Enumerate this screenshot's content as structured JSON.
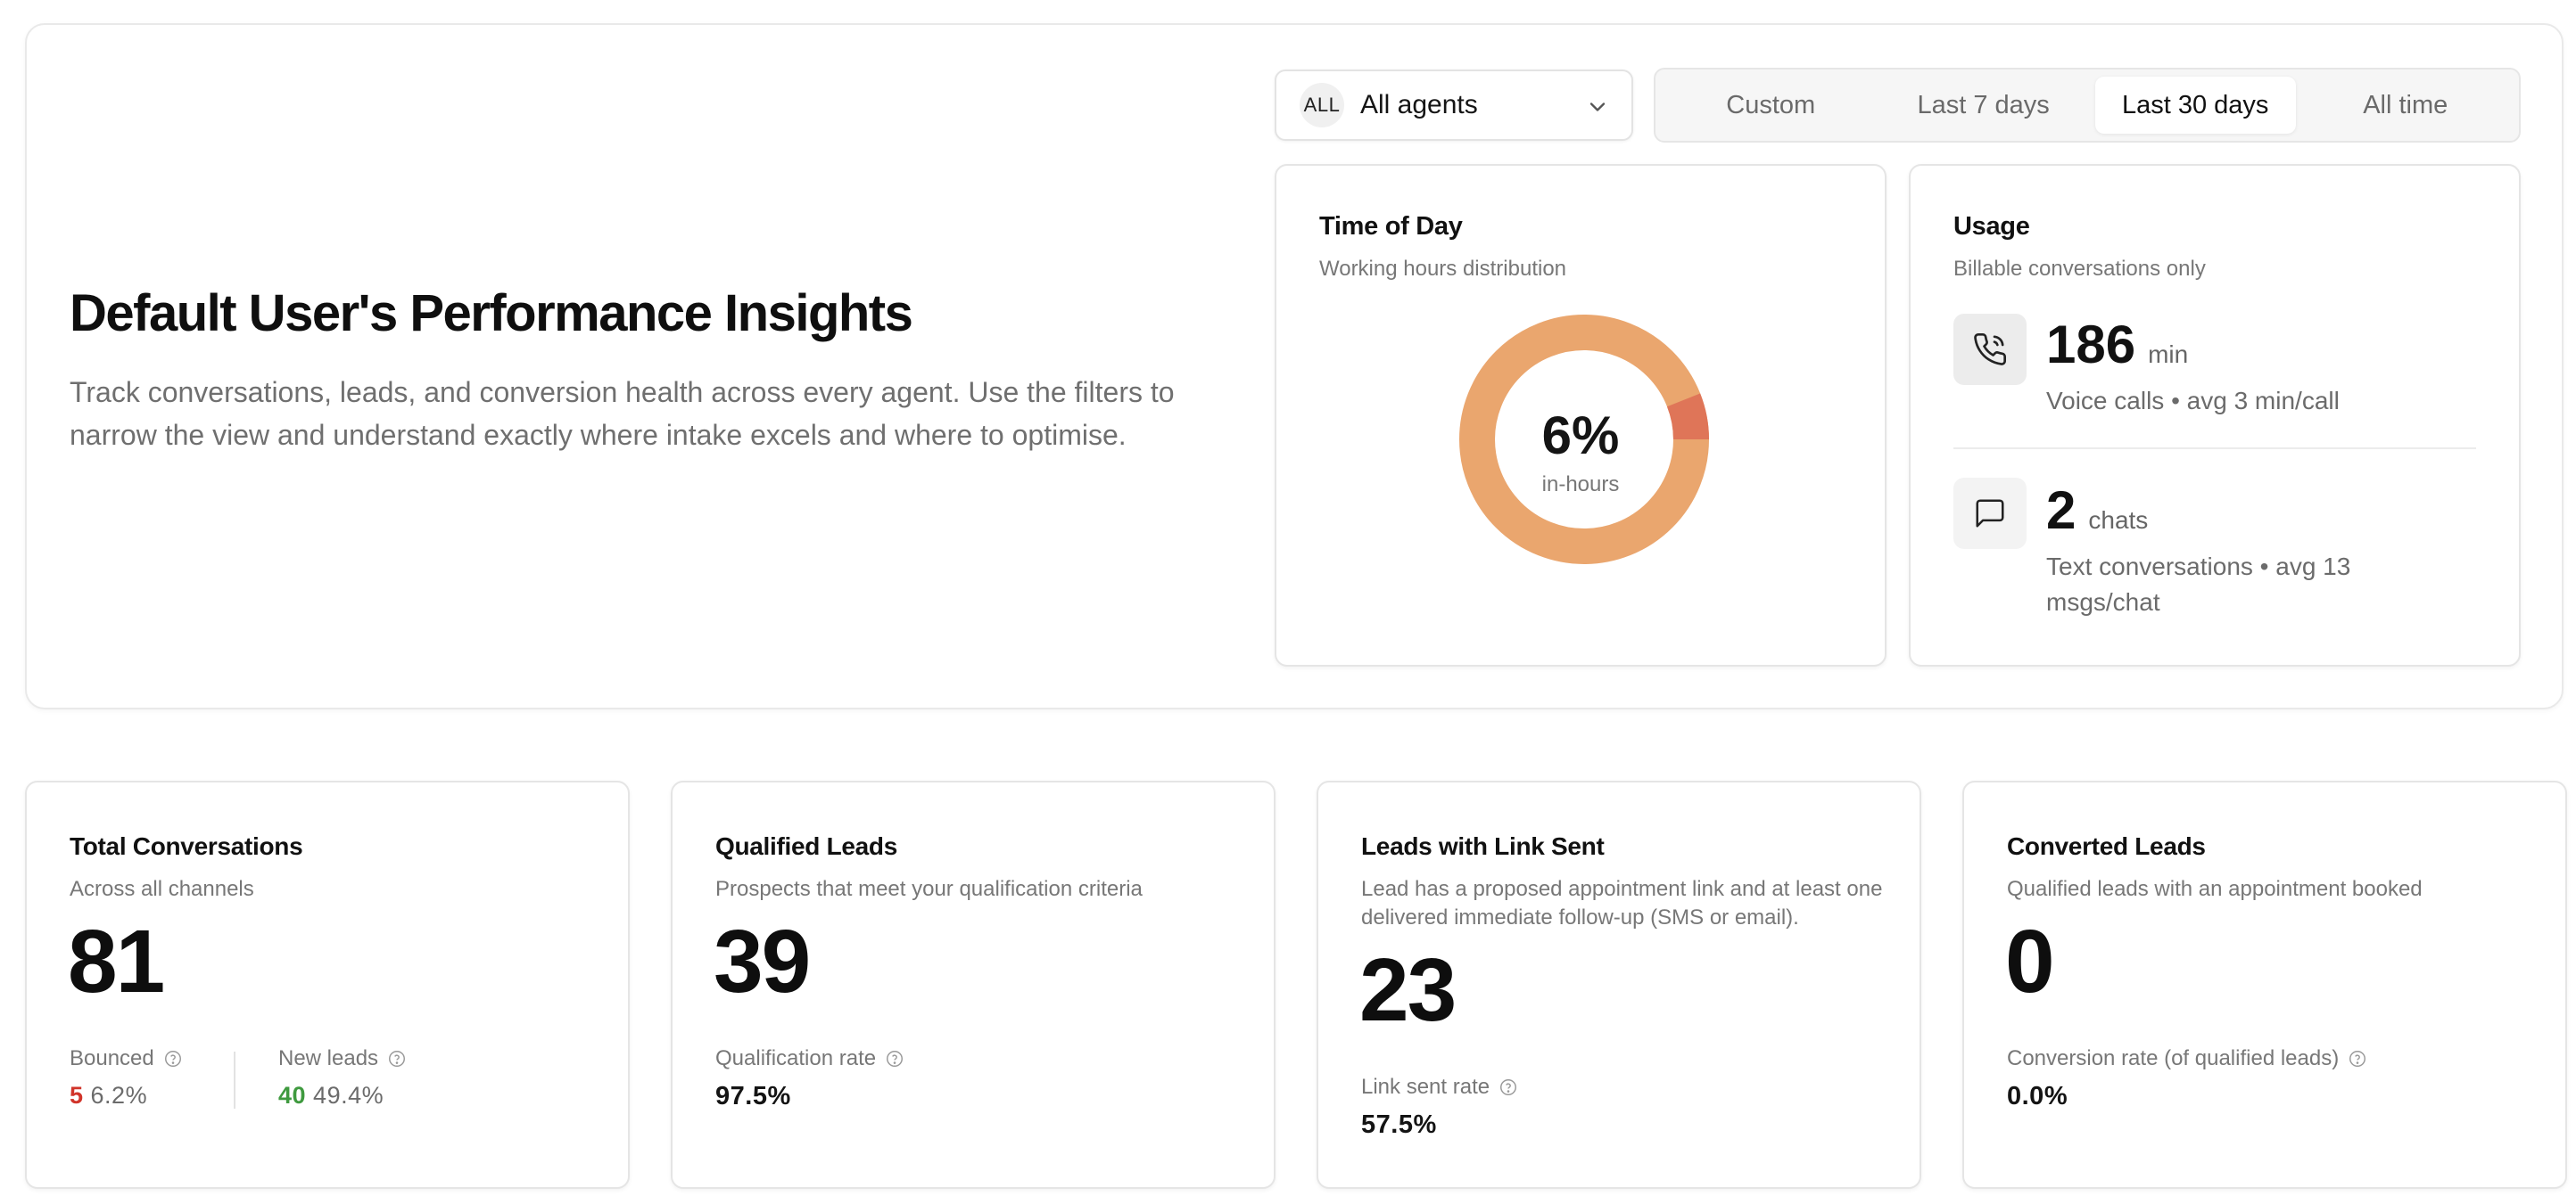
{
  "header": {
    "title": "Default User's Performance Insights",
    "description": "Track conversations, leads, and conversion health across every agent. Use the filters to narrow the view and understand exactly where intake excels and where to optimise."
  },
  "filters": {
    "agent_badge": "ALL",
    "agent_label": "All agents",
    "ranges": [
      "Custom",
      "Last 7 days",
      "Last 30 days",
      "All time"
    ],
    "active_range": "Last 30 days"
  },
  "time_of_day": {
    "title": "Time of Day",
    "subtitle": "Working hours distribution",
    "value": "6%",
    "label": "in-hours",
    "in_hours_fraction": 0.06,
    "colors": {
      "in_hours": "#df7558",
      "out_hours": "#eaa66e"
    }
  },
  "usage": {
    "title": "Usage",
    "subtitle": "Billable conversations only",
    "voice": {
      "icon": "phone-icon",
      "value": "186",
      "unit": "min",
      "desc": "Voice calls • avg 3 min/call"
    },
    "chat": {
      "icon": "chat-bubble-icon",
      "value": "2",
      "unit": "chats",
      "desc": "Text conversations • avg 13 msgs/chat"
    }
  },
  "metrics": {
    "total_conversations": {
      "title": "Total Conversations",
      "subtitle": "Across all channels",
      "value": "81",
      "bounced_label": "Bounced",
      "bounced_count": "5",
      "bounced_pct": "6.2%",
      "new_leads_label": "New leads",
      "new_leads_count": "40",
      "new_leads_pct": "49.4%"
    },
    "qualified_leads": {
      "title": "Qualified Leads",
      "subtitle": "Prospects that meet your qualification criteria",
      "value": "39",
      "rate_label": "Qualification rate",
      "rate": "97.5%"
    },
    "link_sent": {
      "title": "Leads with Link Sent",
      "subtitle": "Lead has a proposed appointment link and at least one delivered immediate follow-up (SMS or email).",
      "value": "23",
      "rate_label": "Link sent rate",
      "rate": "57.5%"
    },
    "converted_leads": {
      "title": "Converted Leads",
      "subtitle": "Qualified leads with an appointment booked",
      "value": "0",
      "rate_label": "Conversion rate (of qualified leads)",
      "rate": "0.0%"
    }
  },
  "colors": {
    "accent_red": "#d1342a",
    "accent_green": "#3f9a3f"
  }
}
